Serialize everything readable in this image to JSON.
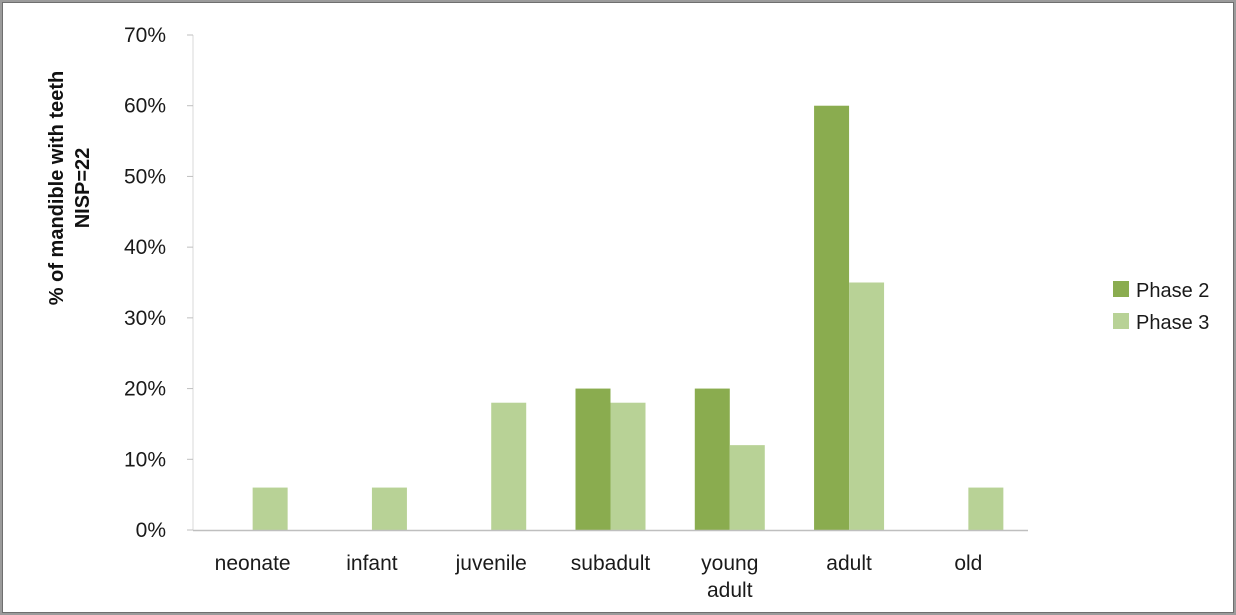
{
  "chart_data": {
    "type": "bar",
    "categories": [
      "neonate",
      "infant",
      "juvenile",
      "subadult",
      "young adult",
      "adult",
      "old"
    ],
    "category_lines": [
      [
        "neonate"
      ],
      [
        "infant"
      ],
      [
        "juvenile"
      ],
      [
        "subadult"
      ],
      [
        "young",
        "adult"
      ],
      [
        "adult"
      ],
      [
        "old"
      ]
    ],
    "series": [
      {
        "name": "Phase 2",
        "color": "#8aac4f",
        "values": [
          null,
          null,
          null,
          20,
          20,
          60,
          null
        ]
      },
      {
        "name": "Phase 3",
        "color": "#b8d296",
        "values": [
          6,
          6,
          18,
          18,
          12,
          35,
          6
        ]
      }
    ],
    "ylabel": [
      "% of mandible with teeth",
      "NISP=22"
    ],
    "ylim": [
      0,
      70
    ],
    "yticks": [
      0,
      10,
      20,
      30,
      40,
      50,
      60,
      70
    ],
    "ytick_labels": [
      "0%",
      "10%",
      "20%",
      "30%",
      "40%",
      "50%",
      "60%",
      "70%"
    ],
    "grid": false,
    "legend": "right"
  }
}
